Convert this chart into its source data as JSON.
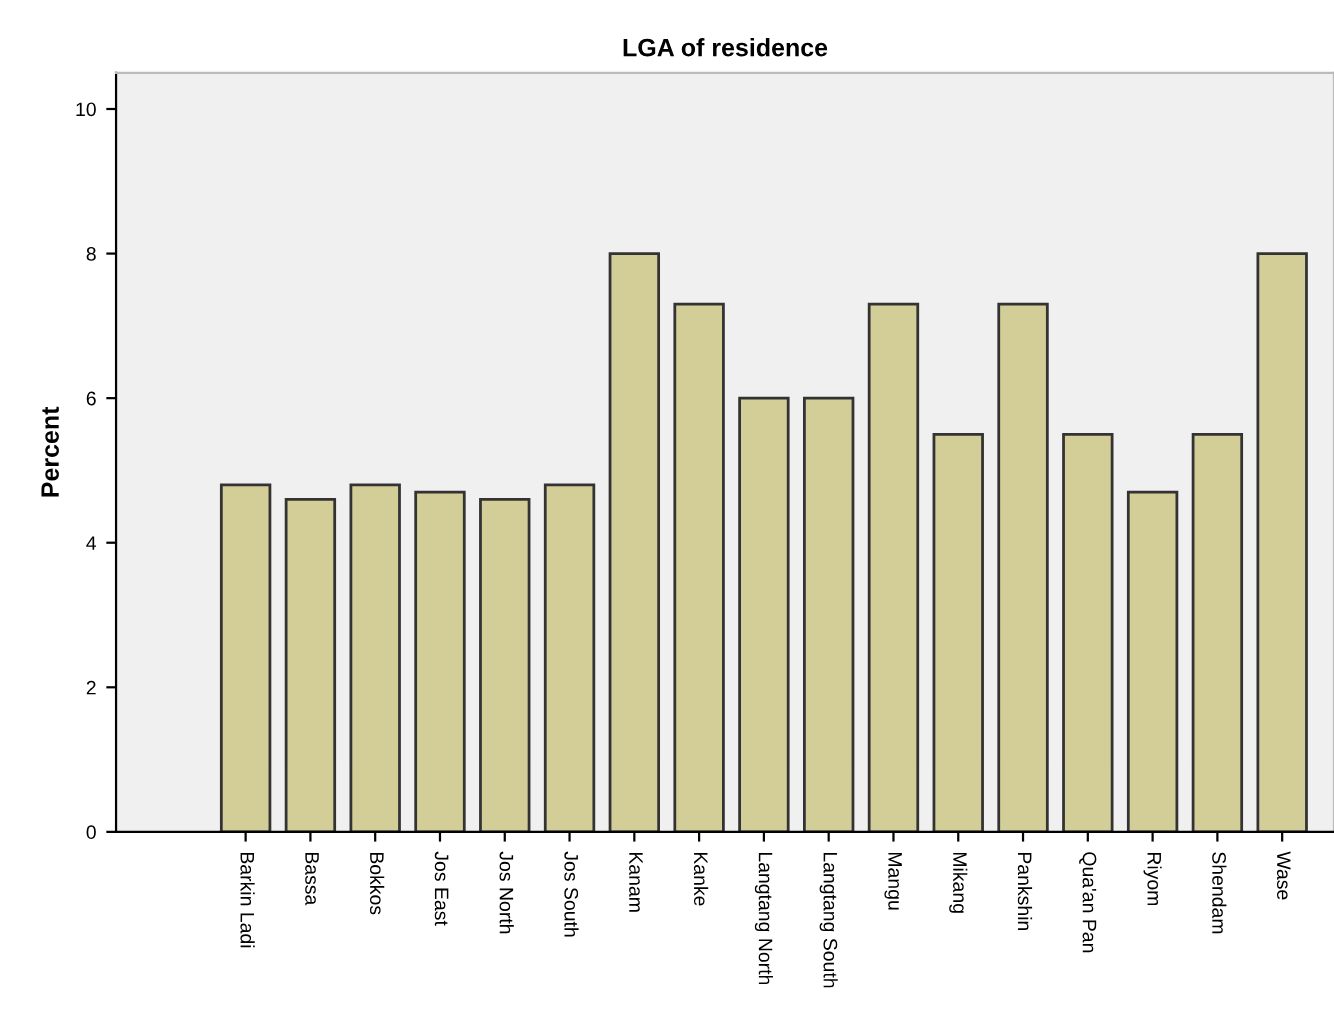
{
  "chart_data": {
    "type": "bar",
    "title": "LGA of residence",
    "ylabel": "Percent",
    "categories": [
      "Barkin Ladi",
      "Bassa",
      "Bokkos",
      "Jos East",
      "Jos North",
      "Jos South",
      "Kanam",
      "Kanke",
      "Langtang North",
      "Langtang South",
      "Mangu",
      "Mikang",
      "Pankshin",
      "Qua'an Pan",
      "Riyom",
      "Shendam",
      "Wase"
    ],
    "values": [
      4.8,
      4.6,
      4.8,
      4.7,
      4.6,
      4.8,
      8.0,
      7.3,
      6.0,
      6.0,
      7.3,
      5.5,
      7.3,
      5.5,
      4.7,
      5.5,
      8.0
    ],
    "color": "#d3ce97",
    "ylim": [
      0,
      10.5
    ],
    "yticks": [
      0,
      2,
      4,
      6,
      8,
      10
    ],
    "grid": false
  }
}
